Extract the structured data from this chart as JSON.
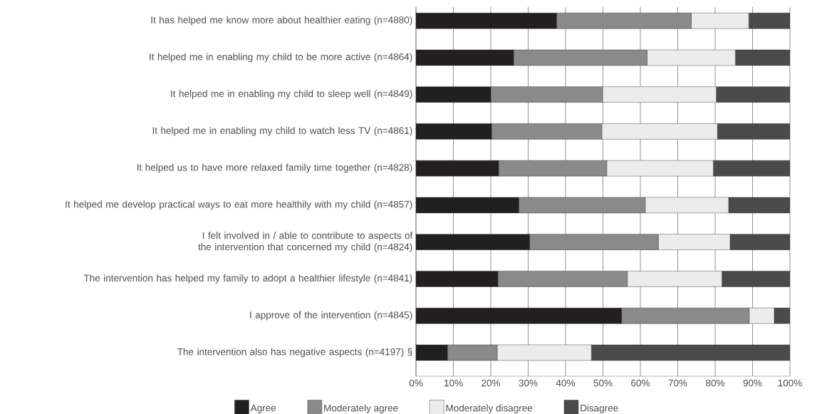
{
  "chart_data": {
    "type": "bar",
    "orientation": "horizontal",
    "stacked": true,
    "categories": [
      "It has helped me know more about healthier eating (n=4880)",
      "It helped me in enabling my child to be more active (n=4864)",
      "It helped me in enabling my child to sleep well (n=4849)",
      "It helped me in enabling my child to watch less TV (n=4861)",
      "It helped us to have more relaxed family time together (n=4828)",
      "It helped me develop practical ways to eat more healthily with my child (n=4857)",
      "I felt involved in / able to contribute to aspects of the intervention that concerned my child (n=4824)",
      "The intervention has helped my family to adopt a healthier lifestyle (n=4841)",
      "I approve of the intervention (n=4845)",
      "The intervention also has negative aspects (n=4197) §"
    ],
    "series": [
      {
        "name": "Agree",
        "color": "#231f20",
        "values": [
          37.6,
          26.1,
          20.0,
          20.2,
          22.1,
          27.5,
          30.4,
          21.9,
          55.0,
          8.4
        ]
      },
      {
        "name": "Moderately agree",
        "color": "#8a8a8a",
        "values": [
          36.0,
          35.7,
          29.9,
          29.5,
          28.9,
          33.8,
          34.4,
          34.6,
          34.1,
          13.3
        ]
      },
      {
        "name": "Moderately disagree",
        "color": "#ececec",
        "values": [
          15.4,
          23.6,
          30.4,
          30.9,
          28.5,
          22.3,
          19.2,
          25.3,
          6.7,
          25.2
        ]
      },
      {
        "name": "Disagree",
        "color": "#4a4a4a",
        "values": [
          11.0,
          14.6,
          19.7,
          19.4,
          20.5,
          16.4,
          16.0,
          18.2,
          4.2,
          53.1
        ]
      }
    ],
    "xlim": [
      0,
      100
    ],
    "xticks": [
      {
        "value": 0,
        "label": "0%"
      },
      {
        "value": 10,
        "label": "10%"
      },
      {
        "value": 20,
        "label": "20%"
      },
      {
        "value": 30,
        "label": "30%"
      },
      {
        "value": 40,
        "label": "40%"
      },
      {
        "value": 50,
        "label": "50%"
      },
      {
        "value": 60,
        "label": "60%"
      },
      {
        "value": 70,
        "label": "70%"
      },
      {
        "value": 80,
        "label": "80%"
      },
      {
        "value": 90,
        "label": "90%"
      },
      {
        "value": 100,
        "label": "100%"
      }
    ],
    "grid": "x",
    "legend": "bottom"
  }
}
